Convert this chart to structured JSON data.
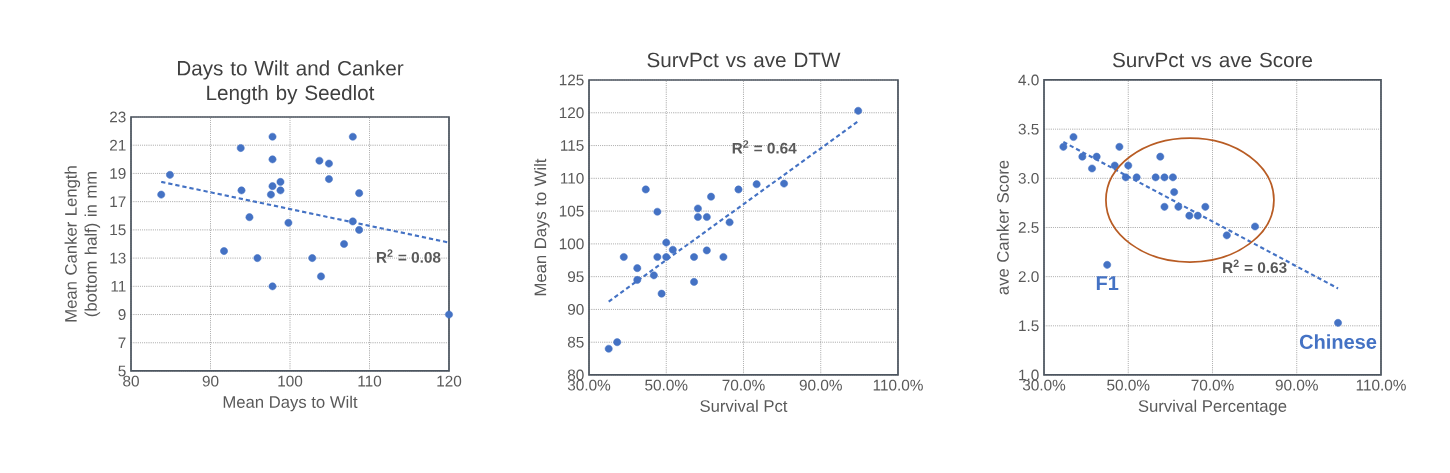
{
  "chart_data": [
    {
      "type": "scatter",
      "title": "Days to Wilt and Canker Length by Seedlot",
      "xlabel": "Mean Days to Wilt",
      "ylabel": "Mean Canker Length (bottom half) in mm",
      "xlim": [
        80,
        120
      ],
      "ylim": [
        5,
        23
      ],
      "xticks": [
        80,
        90,
        100,
        110,
        120
      ],
      "yticks": [
        5,
        7,
        9,
        11,
        13,
        15,
        17,
        19,
        21,
        23
      ],
      "grid": true,
      "marker": "circle",
      "series": [
        {
          "color": "#4472c4",
          "x": [
            83.8,
            84.9,
            93.8,
            93.9,
            91.7,
            94.9,
            95.9,
            97.8,
            97.8,
            97.8,
            97.6,
            98.8,
            98.8,
            97.8,
            99.8,
            102.8,
            103.7,
            104.9,
            104.9,
            103.9,
            106.8,
            107.9,
            108.7,
            107.9,
            108.7,
            120
          ],
          "values": [
            17.5,
            18.9,
            20.8,
            17.8,
            13.5,
            15.9,
            13.0,
            21.6,
            20.0,
            18.1,
            17.5,
            18.4,
            17.8,
            11.0,
            15.5,
            13.0,
            19.9,
            19.7,
            18.6,
            11.7,
            14.0,
            21.6,
            17.6,
            15.6,
            15.0,
            9.0
          ]
        },
        {
          "type": "line",
          "color": "#4472c4",
          "line_style": "dashed",
          "marker": "none",
          "x": [
            83.8,
            120
          ],
          "values": [
            18.4,
            14.1
          ]
        }
      ],
      "annotations": [
        {
          "text": "R$^{2}$ = 0.08",
          "x": 114.9,
          "y": 14.71
        }
      ]
    },
    {
      "type": "scatter",
      "title": "SurvPct vs ave DTW",
      "xlabel": "Survival Pct",
      "ylabel": "Mean Days to Wilt",
      "xlim": [
        30,
        110
      ],
      "ylim": [
        80,
        125
      ],
      "xticks": [
        {
          "value": 30,
          "label": "30.0%"
        },
        {
          "value": 50,
          "label": "50.0%"
        },
        {
          "value": 70,
          "label": "70.0%"
        },
        {
          "value": 90,
          "label": "90.0%"
        },
        {
          "value": 110,
          "label": "110.0%"
        }
      ],
      "yticks": [
        80,
        85,
        90,
        95,
        100,
        105,
        110,
        115,
        120,
        125
      ],
      "grid": true,
      "marker": "circle",
      "series": [
        {
          "color": "#4472c4",
          "x": [
            35.1,
            37.3,
            39.0,
            42.5,
            42.5,
            44.7,
            46.8,
            47.7,
            47.7,
            48.8,
            50.0,
            50.0,
            51.7,
            57.2,
            57.2,
            58.2,
            58.2,
            60.5,
            60.5,
            61.6,
            64.8,
            66.4,
            68.7,
            73.4,
            80.5,
            99.7
          ],
          "values": [
            84.0,
            85.0,
            98.0,
            96.3,
            94.5,
            108.3,
            95.2,
            104.9,
            98.0,
            92.4,
            100.2,
            98.0,
            99.1,
            98.0,
            94.2,
            105.4,
            104.1,
            104.1,
            99.0,
            107.2,
            98.0,
            103.3,
            108.3,
            109.1,
            109.2,
            120.3
          ]
        },
        {
          "type": "line",
          "color": "#4472c4",
          "line_style": "dashed",
          "marker": "none",
          "x": [
            35.1,
            99.7
          ],
          "values": [
            91.2,
            118.7
          ]
        }
      ],
      "annotations": [
        {
          "text": "R$^{2}$ = 0.64",
          "x": 85.0,
          "y": 112.44
        }
      ]
    },
    {
      "type": "scatter",
      "title": "SurvPct vs ave Score",
      "xlabel": "Survival Percentage",
      "ylabel": "ave Canker Score",
      "xlim": [
        30,
        110
      ],
      "ylim": [
        1.0,
        4.0
      ],
      "xticks": [
        {
          "value": 30,
          "label": "30.0%"
        },
        {
          "value": 50,
          "label": "50.0%"
        },
        {
          "value": 70,
          "label": "70.0%"
        },
        {
          "value": 90,
          "label": "90.0%"
        },
        {
          "value": 110,
          "label": "110.0%"
        }
      ],
      "yticks": [
        {
          "value": 1.0,
          "label": "1.0"
        },
        {
          "value": 1.5,
          "label": "1.5"
        },
        {
          "value": 2.0,
          "label": "2.0"
        },
        {
          "value": 2.5,
          "label": "2.5"
        },
        {
          "value": 3.0,
          "label": "3.0"
        },
        {
          "value": 3.5,
          "label": "3.5"
        },
        {
          "value": 4.0,
          "label": "4.0"
        }
      ],
      "grid": true,
      "marker": "circle",
      "series": [
        {
          "color": "#4472c4",
          "x": [
            34.6,
            37.0,
            39.1,
            42.5,
            41.4,
            46.8,
            47.9,
            50.0,
            49.4,
            52.0,
            45.0,
            56.5,
            57.6,
            58.6,
            60.6,
            60.9,
            58.6,
            61.9,
            64.5,
            66.5,
            68.3,
            73.4,
            80.1,
            99.8
          ],
          "values": [
            3.32,
            3.42,
            3.22,
            3.22,
            3.1,
            3.13,
            3.32,
            3.13,
            3.01,
            3.01,
            2.12,
            3.01,
            3.22,
            3.01,
            3.01,
            2.86,
            2.71,
            2.71,
            2.62,
            2.62,
            2.71,
            2.42,
            2.51,
            1.53
          ]
        },
        {
          "type": "line",
          "color": "#4472c4",
          "line_style": "dashed",
          "marker": "none",
          "x": [
            34.6,
            99.8
          ],
          "values": [
            3.37,
            1.88
          ]
        }
      ],
      "annotations": [
        {
          "text": "F1",
          "x": 45.0,
          "y": 2.12
        },
        {
          "text": "Chinese",
          "x": 99.8,
          "y": 1.53
        },
        {
          "text": "R$^{2}$ = 0.63",
          "x": 80.0,
          "y": 2.33
        }
      ]
    }
  ]
}
